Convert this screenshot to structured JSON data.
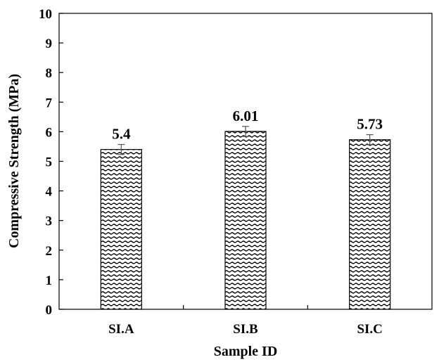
{
  "chart_data": {
    "type": "bar",
    "title": "",
    "xlabel": "Sample ID",
    "ylabel": "Compressive Strength (MPa)",
    "categories": [
      "SI.A",
      "SI.B",
      "SI.C"
    ],
    "values": [
      5.4,
      6.01,
      5.73
    ],
    "data_labels": [
      "5.4",
      "6.01",
      "5.73"
    ],
    "error": [
      0.17,
      0.17,
      0.17
    ],
    "ylim": [
      0,
      10
    ],
    "yticks": [
      0,
      1,
      2,
      3,
      4,
      5,
      6,
      7,
      8,
      9,
      10
    ],
    "grid": false,
    "legend": "none",
    "bar_pattern": "wavy-hatch",
    "colors": {
      "bar_fill": "#ffffff",
      "bar_pattern": "#000000",
      "axis": "#000000"
    }
  }
}
